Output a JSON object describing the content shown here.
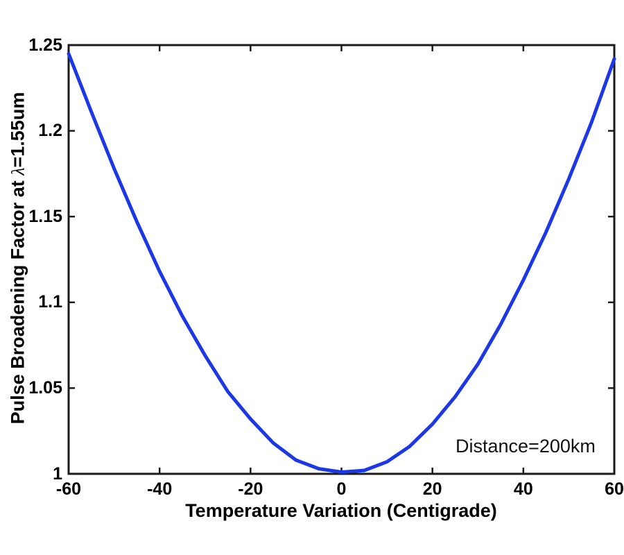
{
  "chart_data": {
    "type": "line",
    "title": "",
    "xlabel": "Temperature Variation (Centigrade)",
    "ylabel": "Pulse Broadening Factor at λ=1.55um",
    "ylabel_parts": {
      "prefix": "Pulse Broadening Factor at ",
      "lambda": "λ",
      "suffix": "=1.55um"
    },
    "annotation": "Distance=200km",
    "xlim": [
      -60,
      60
    ],
    "ylim": [
      1,
      1.25
    ],
    "x_ticks": [
      -60,
      -40,
      -20,
      0,
      20,
      40,
      60
    ],
    "x_tick_labels": [
      "-60",
      "-40",
      "-20",
      "0",
      "20",
      "40",
      "60"
    ],
    "y_ticks": [
      1,
      1.05,
      1.1,
      1.15,
      1.2,
      1.25
    ],
    "y_tick_labels": [
      "1",
      "1.05",
      "1.1",
      "1.15",
      "1.2",
      "1.25"
    ],
    "grid": false,
    "legend": "none",
    "box": true,
    "series": [
      {
        "name": "pulse-broadening-factor",
        "x": [
          -60,
          -55,
          -50,
          -45,
          -40,
          -35,
          -30,
          -25,
          -20,
          -15,
          -10,
          -5,
          0,
          5,
          10,
          15,
          20,
          25,
          30,
          35,
          40,
          45,
          50,
          55,
          60
        ],
        "y": [
          1.245,
          1.211,
          1.178,
          1.147,
          1.118,
          1.092,
          1.069,
          1.048,
          1.032,
          1.018,
          1.008,
          1.003,
          1.001,
          1.002,
          1.007,
          1.016,
          1.029,
          1.045,
          1.064,
          1.087,
          1.113,
          1.141,
          1.172,
          1.205,
          1.242
        ]
      }
    ]
  },
  "colors": {
    "line": "#1c38e6",
    "axis": "#1a1a1a",
    "text": "#000000",
    "background": "#ffffff"
  }
}
